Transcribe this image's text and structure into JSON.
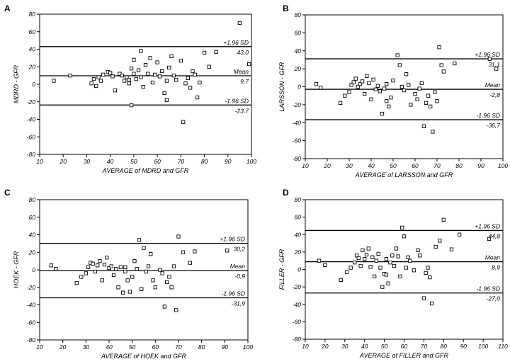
{
  "chart_data": [
    {
      "panel": "A",
      "type": "scatter",
      "xlabel": "AVERAGE of MDRD and GFR",
      "ylabel": "MDRD - GFR",
      "xlim": [
        10,
        100
      ],
      "ylim": [
        -80,
        80
      ],
      "xticks": [
        10,
        20,
        30,
        40,
        50,
        60,
        70,
        80,
        90,
        100
      ],
      "yticks": [
        -80,
        -60,
        -40,
        -20,
        0,
        20,
        40,
        60,
        80
      ],
      "grid": false,
      "reference_lines": [
        {
          "name": "+1.96 SD",
          "value": 43.0,
          "value_label": "43,0"
        },
        {
          "name": "Mean",
          "value": 9.7,
          "value_label": "9,7"
        },
        {
          "name": "-1.96 SD",
          "value": -23.7,
          "value_label": "-23,7"
        }
      ],
      "x": [
        16,
        23,
        32,
        33,
        34,
        35,
        36,
        37,
        39,
        40,
        41,
        42,
        44,
        45,
        46,
        47,
        48,
        48,
        49,
        49,
        50,
        50,
        51,
        52,
        53,
        53,
        54,
        55,
        56,
        57,
        58,
        59,
        60,
        61,
        62,
        63,
        64,
        64,
        65,
        66,
        67,
        68,
        70,
        71,
        72,
        73,
        74,
        75,
        76,
        77,
        78,
        80,
        82,
        85,
        95,
        99
      ],
      "y": [
        4,
        10,
        1,
        6,
        -2,
        8,
        4,
        11,
        14,
        13,
        9,
        -7,
        12,
        10,
        4,
        8,
        5,
        1,
        18,
        -24,
        28,
        12,
        6,
        16,
        8,
        38,
        -3,
        22,
        12,
        30,
        2,
        11,
        25,
        9,
        15,
        -10,
        4,
        -18,
        19,
        32,
        10,
        5,
        27,
        -43,
        1,
        7,
        -4,
        15,
        11,
        -15,
        2,
        36,
        20,
        37,
        70,
        23
      ]
    },
    {
      "panel": "B",
      "type": "scatter",
      "xlabel": "AVERAGE of LARSSON and GFR",
      "ylabel": "LARSSON - GFR",
      "xlim": [
        10,
        100
      ],
      "ylim": [
        -80,
        80
      ],
      "xticks": [
        10,
        20,
        30,
        40,
        50,
        60,
        70,
        80,
        90,
        100
      ],
      "yticks": [
        -80,
        -60,
        -40,
        -20,
        0,
        20,
        40,
        60,
        80
      ],
      "grid": false,
      "reference_lines": [
        {
          "name": "+1.96 SD",
          "value": 31.1,
          "value_label": "31,1"
        },
        {
          "name": "Mean",
          "value": -2.8,
          "value_label": "-2,8"
        },
        {
          "name": "-1.96 SD",
          "value": -36.7,
          "value_label": "-36,7"
        }
      ],
      "x": [
        15,
        17,
        26,
        28,
        30,
        31,
        32,
        33,
        34,
        35,
        36,
        37,
        38,
        39,
        40,
        41,
        42,
        43,
        44,
        45,
        46,
        47,
        47,
        48,
        49,
        50,
        52,
        53,
        54,
        55,
        56,
        57,
        58,
        60,
        61,
        62,
        63,
        64,
        65,
        66,
        67,
        68,
        69,
        70,
        71,
        72,
        73,
        78,
        94,
        97
      ],
      "y": [
        3,
        -1,
        -18,
        -10,
        -6,
        2,
        5,
        9,
        0,
        3,
        6,
        -8,
        12,
        4,
        -14,
        8,
        -3,
        1,
        -5,
        -30,
        -2,
        -16,
        3,
        -22,
        -12,
        7,
        35,
        24,
        0,
        -4,
        14,
        2,
        -20,
        -8,
        -14,
        -2,
        4,
        -44,
        -18,
        -10,
        -22,
        -50,
        -6,
        -16,
        44,
        24,
        17,
        26,
        31,
        20
      ]
    },
    {
      "panel": "C",
      "type": "scatter",
      "xlabel": "AVERAGE of HOEK and GFR",
      "ylabel": "HOEK - GFR",
      "xlim": [
        10,
        100
      ],
      "ylim": [
        -80,
        80
      ],
      "xticks": [
        10,
        20,
        30,
        40,
        50,
        60,
        70,
        80,
        90,
        100
      ],
      "yticks": [
        -80,
        -60,
        -40,
        -20,
        0,
        20,
        40,
        60,
        80
      ],
      "grid": false,
      "reference_lines": [
        {
          "name": "+1.96 SD",
          "value": 30.2,
          "value_label": "30,2"
        },
        {
          "name": "Mean",
          "value": -0.9,
          "value_label": "-0,9"
        },
        {
          "name": "-1.96 SD",
          "value": -31.9,
          "value_label": "-31,9"
        }
      ],
      "x": [
        15,
        17,
        26,
        28,
        30,
        31,
        32,
        33,
        34,
        35,
        36,
        37,
        38,
        39,
        40,
        41,
        42,
        43,
        44,
        45,
        46,
        47,
        47,
        48,
        49,
        50,
        51,
        52,
        53,
        54,
        55,
        56,
        57,
        58,
        59,
        60,
        62,
        63,
        64,
        65,
        66,
        67,
        68,
        69,
        70,
        72,
        75,
        77,
        91
      ],
      "y": [
        5,
        1,
        -15,
        -8,
        -4,
        3,
        8,
        7,
        -2,
        5,
        10,
        -12,
        6,
        14,
        2,
        4,
        -6,
        1,
        -20,
        3,
        -26,
        -2,
        3,
        -12,
        -25,
        -8,
        10,
        1,
        34,
        -22,
        25,
        -2,
        4,
        18,
        -12,
        -20,
        0,
        -4,
        -42,
        -14,
        -8,
        -20,
        4,
        -46,
        38,
        20,
        8,
        21,
        22
      ]
    },
    {
      "panel": "D",
      "type": "scatter",
      "xlabel": "AVERAGE of FILLER and GFR",
      "ylabel": "FILLER - GFR",
      "xlim": [
        10,
        110
      ],
      "ylim": [
        -80,
        80
      ],
      "xticks": [
        10,
        20,
        30,
        40,
        50,
        60,
        70,
        80,
        90,
        100,
        110
      ],
      "yticks": [
        -80,
        -60,
        -40,
        -20,
        0,
        20,
        40,
        60,
        80
      ],
      "grid": false,
      "reference_lines": [
        {
          "name": "+1.96 SD",
          "value": 44.8,
          "value_label": "44,8"
        },
        {
          "name": "Mean",
          "value": 8.9,
          "value_label": "8,9"
        },
        {
          "name": "-1.96 SD",
          "value": -27.0,
          "value_label": "-27,0"
        }
      ],
      "x": [
        17,
        20,
        28,
        31,
        33,
        35,
        36,
        37,
        38,
        39,
        40,
        41,
        42,
        43,
        44,
        45,
        46,
        47,
        48,
        49,
        50,
        51,
        51,
        52,
        53,
        54,
        55,
        56,
        57,
        58,
        59,
        60,
        61,
        62,
        63,
        65,
        67,
        68,
        70,
        71,
        72,
        73,
        74,
        76,
        78,
        80,
        84,
        88,
        103
      ],
      "y": [
        10,
        5,
        -12,
        -3,
        2,
        8,
        16,
        13,
        4,
        22,
        12,
        17,
        24,
        3,
        14,
        -8,
        10,
        18,
        2,
        -20,
        -5,
        12,
        -6,
        -16,
        8,
        16,
        4,
        24,
        15,
        -8,
        48,
        38,
        2,
        14,
        10,
        -1,
        22,
        16,
        -33,
        -4,
        2,
        -9,
        -39,
        26,
        33,
        57,
        23,
        40,
        35
      ]
    }
  ]
}
